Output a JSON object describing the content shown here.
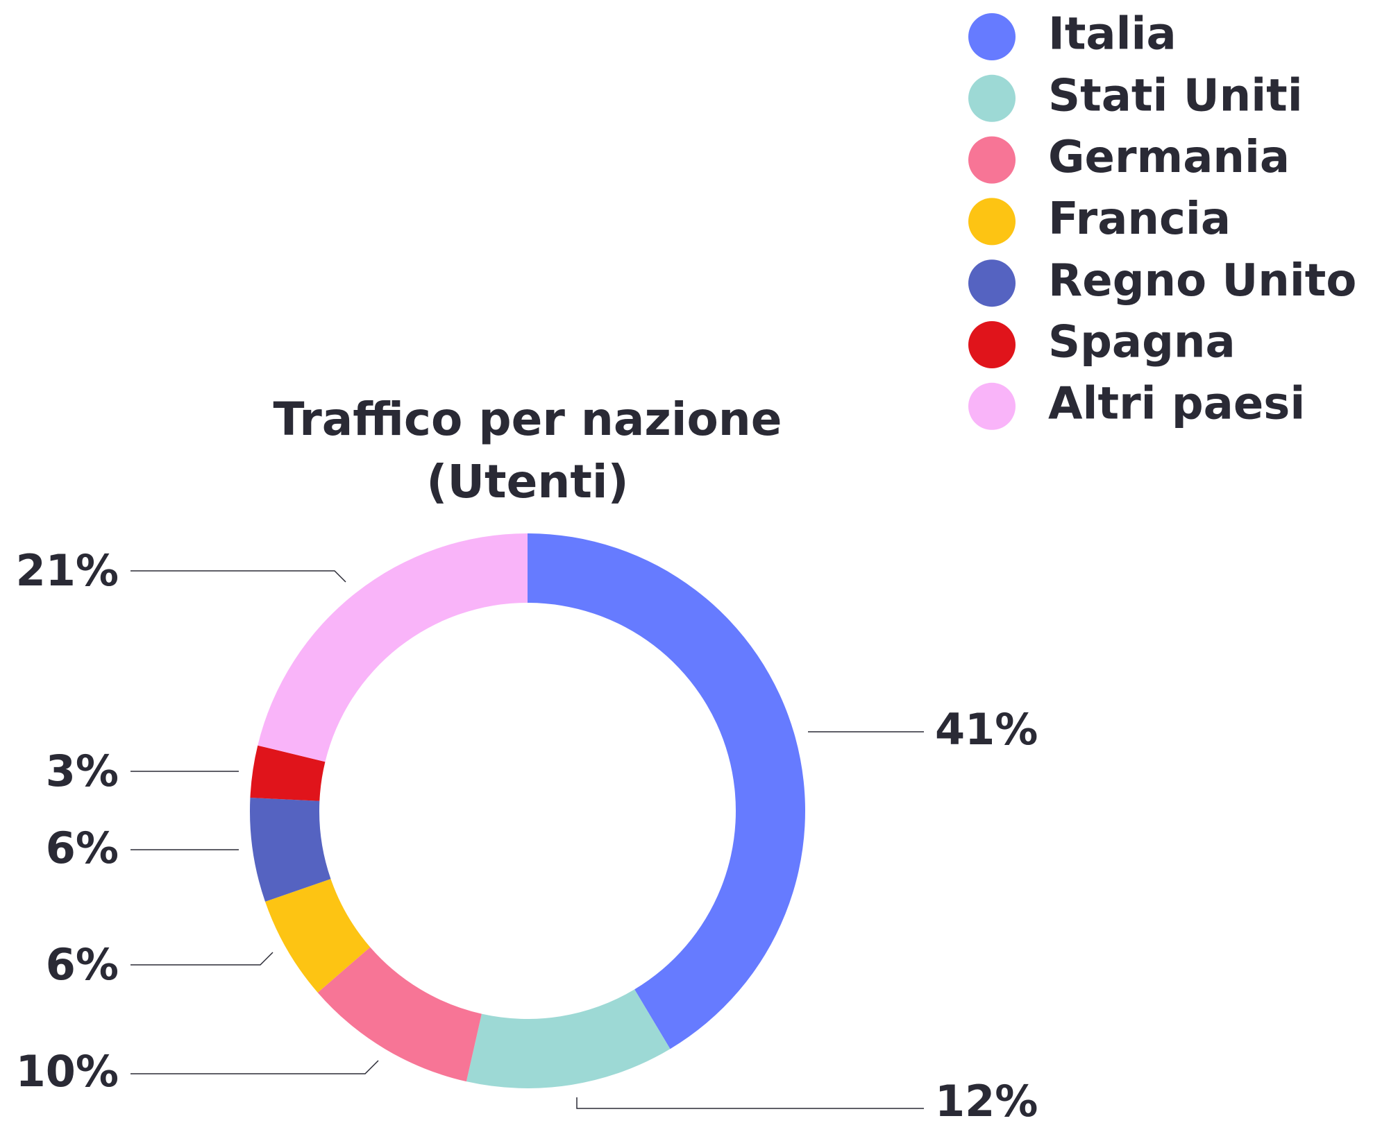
{
  "chart_data": {
    "type": "donut",
    "title": "Traffico per nazione (Utenti)",
    "categories": [
      "Italia",
      "Stati Uniti",
      "Germania",
      "Francia",
      "Regno Unito",
      "Spagna",
      "Altri paesi"
    ],
    "values": [
      41,
      12,
      10,
      6,
      6,
      3,
      21
    ],
    "value_labels": [
      "41%",
      "12%",
      "10%",
      "6%",
      "6%",
      "3%",
      "21%"
    ],
    "colors": [
      "#667bff",
      "#9dd9d5",
      "#f77596",
      "#fdc413",
      "#5563c1",
      "#e0141b",
      "#f9b4f9"
    ],
    "legend": "top-right"
  }
}
